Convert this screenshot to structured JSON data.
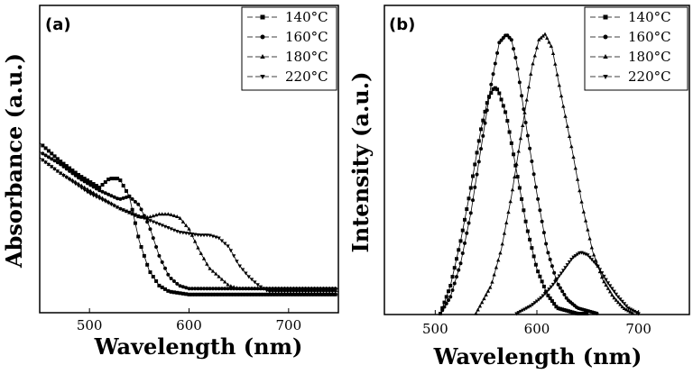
{
  "chart_data": [
    {
      "type": "line",
      "panel_label": "(a)",
      "xlabel": "Wavelength (nm)",
      "ylabel": "Absorbance (a.u.)",
      "xlim": [
        450,
        750
      ],
      "x_ticks": [
        500,
        600,
        700
      ],
      "y_ticks": [],
      "legend_position": "top-right",
      "series": [
        {
          "name": "140°C",
          "marker": "square",
          "x": [
            450,
            470,
            490,
            510,
            520,
            530,
            540,
            550,
            560,
            570,
            580,
            600,
            620,
            650,
            700,
            750
          ],
          "y": [
            0.55,
            0.49,
            0.44,
            0.4,
            0.43,
            0.43,
            0.37,
            0.22,
            0.12,
            0.07,
            0.05,
            0.04,
            0.04,
            0.04,
            0.04,
            0.04
          ]
        },
        {
          "name": "160°C",
          "marker": "circle",
          "x": [
            450,
            470,
            490,
            510,
            530,
            540,
            550,
            560,
            570,
            580,
            590,
            600,
            620,
            650,
            700,
            750
          ],
          "y": [
            0.52,
            0.48,
            0.43,
            0.39,
            0.36,
            0.37,
            0.34,
            0.27,
            0.17,
            0.1,
            0.07,
            0.06,
            0.06,
            0.06,
            0.06,
            0.06
          ]
        },
        {
          "name": "180°C",
          "marker": "triangle-up",
          "x": [
            450,
            470,
            500,
            530,
            550,
            560,
            570,
            580,
            590,
            600,
            610,
            620,
            640,
            650,
            700,
            750
          ],
          "y": [
            0.5,
            0.45,
            0.39,
            0.33,
            0.3,
            0.3,
            0.31,
            0.31,
            0.3,
            0.26,
            0.19,
            0.13,
            0.07,
            0.06,
            0.06,
            0.06
          ]
        },
        {
          "name": "220°C",
          "marker": "triangle-down",
          "x": [
            450,
            470,
            500,
            530,
            560,
            590,
            610,
            620,
            630,
            640,
            650,
            660,
            670,
            680,
            700,
            750
          ],
          "y": [
            0.5,
            0.45,
            0.38,
            0.33,
            0.29,
            0.25,
            0.24,
            0.24,
            0.23,
            0.2,
            0.14,
            0.1,
            0.07,
            0.05,
            0.05,
            0.05
          ]
        }
      ]
    },
    {
      "type": "line",
      "panel_label": "(b)",
      "xlabel": "Wavelength (nm)",
      "ylabel": "Intensity (a.u.)",
      "xlim": [
        450,
        750
      ],
      "x_ticks": [
        500,
        600,
        700
      ],
      "y_ticks": [],
      "legend_position": "top-right",
      "series": [
        {
          "name": "140°C",
          "marker": "square",
          "x": [
            505,
            515,
            525,
            535,
            545,
            552,
            558,
            562,
            570,
            580,
            590,
            600,
            610,
            620,
            630,
            640,
            650
          ],
          "y": [
            0.0,
            0.1,
            0.26,
            0.45,
            0.66,
            0.77,
            0.81,
            0.8,
            0.71,
            0.51,
            0.31,
            0.16,
            0.07,
            0.02,
            0.01,
            0.0,
            0.0
          ]
        },
        {
          "name": "160°C",
          "marker": "circle",
          "x": [
            505,
            515,
            525,
            535,
            545,
            555,
            563,
            570,
            575,
            580,
            590,
            600,
            610,
            620,
            630,
            640,
            650,
            660
          ],
          "y": [
            0.0,
            0.06,
            0.18,
            0.36,
            0.59,
            0.82,
            0.97,
            1.0,
            0.98,
            0.9,
            0.66,
            0.43,
            0.23,
            0.11,
            0.05,
            0.02,
            0.01,
            0.0
          ]
        },
        {
          "name": "180°C",
          "marker": "triangle-up",
          "x": [
            540,
            555,
            565,
            575,
            585,
            595,
            602,
            608,
            615,
            625,
            635,
            645,
            655,
            665,
            675,
            685,
            695
          ],
          "y": [
            0.0,
            0.1,
            0.23,
            0.42,
            0.65,
            0.88,
            0.98,
            1.0,
            0.95,
            0.76,
            0.58,
            0.38,
            0.22,
            0.12,
            0.06,
            0.02,
            0.0
          ]
        },
        {
          "name": "220°C",
          "marker": "triangle-down",
          "x": [
            580,
            595,
            605,
            615,
            625,
            635,
            643,
            650,
            660,
            670,
            680,
            690,
            700
          ],
          "y": [
            0.0,
            0.03,
            0.06,
            0.1,
            0.15,
            0.2,
            0.22,
            0.21,
            0.17,
            0.11,
            0.06,
            0.02,
            0.0
          ]
        }
      ]
    }
  ]
}
